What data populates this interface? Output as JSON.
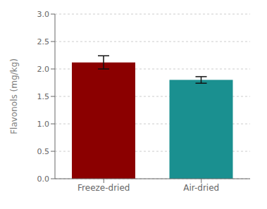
{
  "chart_data": {
    "type": "bar",
    "categories": [
      "Freeze-dried",
      "Air-dried"
    ],
    "values": [
      2.12,
      1.8
    ],
    "errors": [
      0.12,
      0.06
    ],
    "colors": [
      "#8B0000",
      "#1A9090"
    ],
    "ylabel": "Flavonols (mg/kg)",
    "ylim": [
      0.0,
      3.0
    ],
    "yticks": [
      {
        "value": 0,
        "label": "0.0"
      },
      0.5,
      {
        "value": 1,
        "label": "1.0"
      },
      1.5,
      {
        "value": 2,
        "label": "2.0"
      },
      2.5,
      {
        "value": 3,
        "label": "3.0"
      }
    ],
    "grid": true
  }
}
